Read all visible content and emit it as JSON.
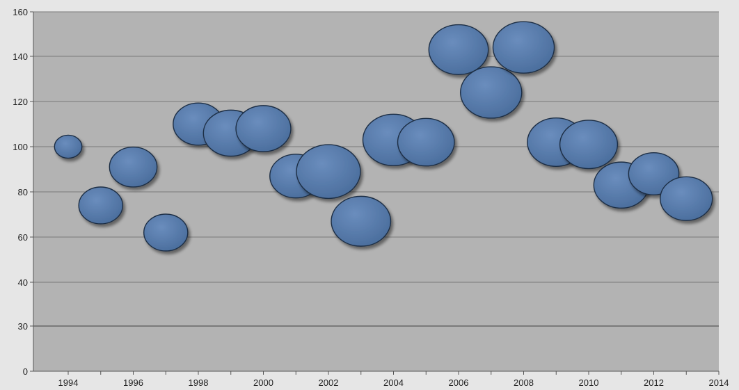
{
  "chart_data": {
    "type": "bubble",
    "title": "",
    "xlabel": "",
    "ylabel": "",
    "grid": true,
    "legend": "none",
    "xlim": [
      1993.3,
      2014
    ],
    "x_ticks": [
      "1994",
      "1996",
      "1998",
      "2000",
      "2002",
      "2004",
      "2006",
      "2008",
      "2010",
      "2012",
      "2014"
    ],
    "y_ticks": [
      {
        "label": "0",
        "value": 0
      },
      {
        "label": "30",
        "value": 30
      },
      {
        "label": "40",
        "value": 40
      },
      {
        "label": "60",
        "value": 60
      },
      {
        "label": "80",
        "value": 80
      },
      {
        "label": "100",
        "value": 100
      },
      {
        "label": "120",
        "value": 120
      },
      {
        "label": "140",
        "value": 140
      },
      {
        "label": "160",
        "value": 160
      }
    ],
    "colors": {
      "bubble": "#5a7ead",
      "bubble_stroke": "#1f2f45",
      "plot_bg": "#b3b3b3",
      "page_bg": "#e6e6e6",
      "gridline": "#7a7a7a"
    },
    "series": [
      {
        "points": [
          {
            "x": 1994,
            "y": 100,
            "size": 0.3
          },
          {
            "x": 1995,
            "y": 74,
            "size": 0.48
          },
          {
            "x": 1996,
            "y": 91,
            "size": 0.52
          },
          {
            "x": 1997,
            "y": 62,
            "size": 0.48
          },
          {
            "x": 1998,
            "y": 110,
            "size": 0.55
          },
          {
            "x": 1999,
            "y": 106,
            "size": 0.6
          },
          {
            "x": 2000,
            "y": 108,
            "size": 0.6
          },
          {
            "x": 2001,
            "y": 87,
            "size": 0.57
          },
          {
            "x": 2002,
            "y": 89,
            "size": 0.7
          },
          {
            "x": 2003,
            "y": 67,
            "size": 0.65
          },
          {
            "x": 2004,
            "y": 103,
            "size": 0.67
          },
          {
            "x": 2005,
            "y": 102,
            "size": 0.62
          },
          {
            "x": 2006,
            "y": 143,
            "size": 0.65
          },
          {
            "x": 2007,
            "y": 124,
            "size": 0.67
          },
          {
            "x": 2008,
            "y": 144,
            "size": 0.67
          },
          {
            "x": 2009,
            "y": 102,
            "size": 0.63
          },
          {
            "x": 2010,
            "y": 101,
            "size": 0.63
          },
          {
            "x": 2011,
            "y": 83,
            "size": 0.6
          },
          {
            "x": 2012,
            "y": 88,
            "size": 0.55
          },
          {
            "x": 2013,
            "y": 77,
            "size": 0.57
          }
        ]
      }
    ]
  }
}
